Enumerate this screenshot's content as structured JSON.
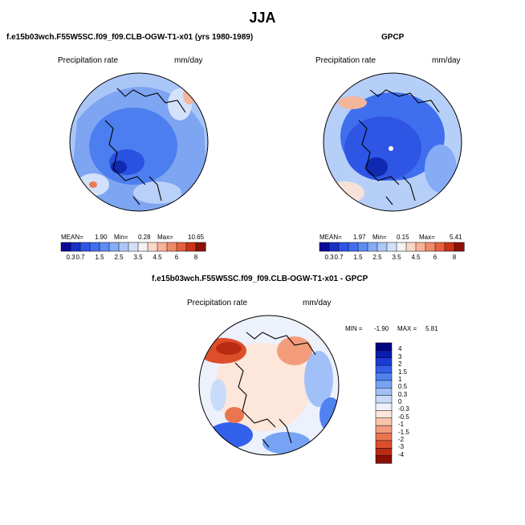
{
  "header": {
    "title": "JJA"
  },
  "panels": {
    "model": {
      "title": "f.e15b03wch.F55W5SC.f09_f09.CLB-OGW-T1-x01 (yrs 1980-1989)",
      "variable": "Precipitation rate",
      "units": "mm/day",
      "mean_label": "MEAN=",
      "mean_value": "1.90",
      "min_label": "Min=",
      "min_value": "0.28",
      "max_label": "Max=",
      "max_value": "10.65"
    },
    "obs": {
      "title": "GPCP",
      "variable": "Precipitation rate",
      "units": "mm/day",
      "mean_label": "MEAN=",
      "mean_value": "1.97",
      "min_label": "Min=",
      "min_value": "0.15",
      "max_label": "Max=",
      "max_value": "5.41"
    },
    "diff": {
      "title": "f.e15b03wch.F55W5SC.f09_f09.CLB-OGW-T1-x01 - GPCP",
      "variable": "Precipitation rate",
      "units": "mm/day",
      "min_label": "MIN =",
      "min_value": "-1.90",
      "max_label": "MAX =",
      "max_value": "5.81"
    }
  },
  "colorbar_abs": {
    "colors": [
      "#0a0a9a",
      "#1a2fc4",
      "#2e55e4",
      "#3f6fee",
      "#5d8cf3",
      "#86acf6",
      "#adc8f8",
      "#d2e1fa",
      "#f2f2f2",
      "#fbd8c6",
      "#f7b398",
      "#ef8b6a",
      "#e5603e",
      "#c93418",
      "#8b1208"
    ],
    "ticks": [
      "0.3",
      "0.7",
      "1",
      "1.5",
      "2",
      "2.5",
      "3",
      "3.5",
      "4",
      "4.5",
      "5",
      "6",
      "7",
      "8"
    ],
    "shown_ticks": [
      "0.3",
      "0.7",
      "1.5",
      "2.5",
      "3.5",
      "4.5",
      "6",
      "8"
    ]
  },
  "colorbar_diff": {
    "colors": [
      "#000080",
      "#0b1ab0",
      "#1c3ad6",
      "#3261ec",
      "#5182f2",
      "#77a3f5",
      "#a1c0f8",
      "#c9dbfa",
      "#ecf1fb",
      "#fde6da",
      "#f9c4ab",
      "#f39c7c",
      "#ea7650",
      "#dd4e2b",
      "#bb2a12",
      "#8a0f05"
    ],
    "labels": [
      "4",
      "3",
      "2",
      "1.5",
      "1",
      "0.5",
      "0.3",
      "0",
      "-0.3",
      "-0.5",
      "-1",
      "-1.5",
      "-2",
      "-3",
      "-4"
    ]
  }
}
